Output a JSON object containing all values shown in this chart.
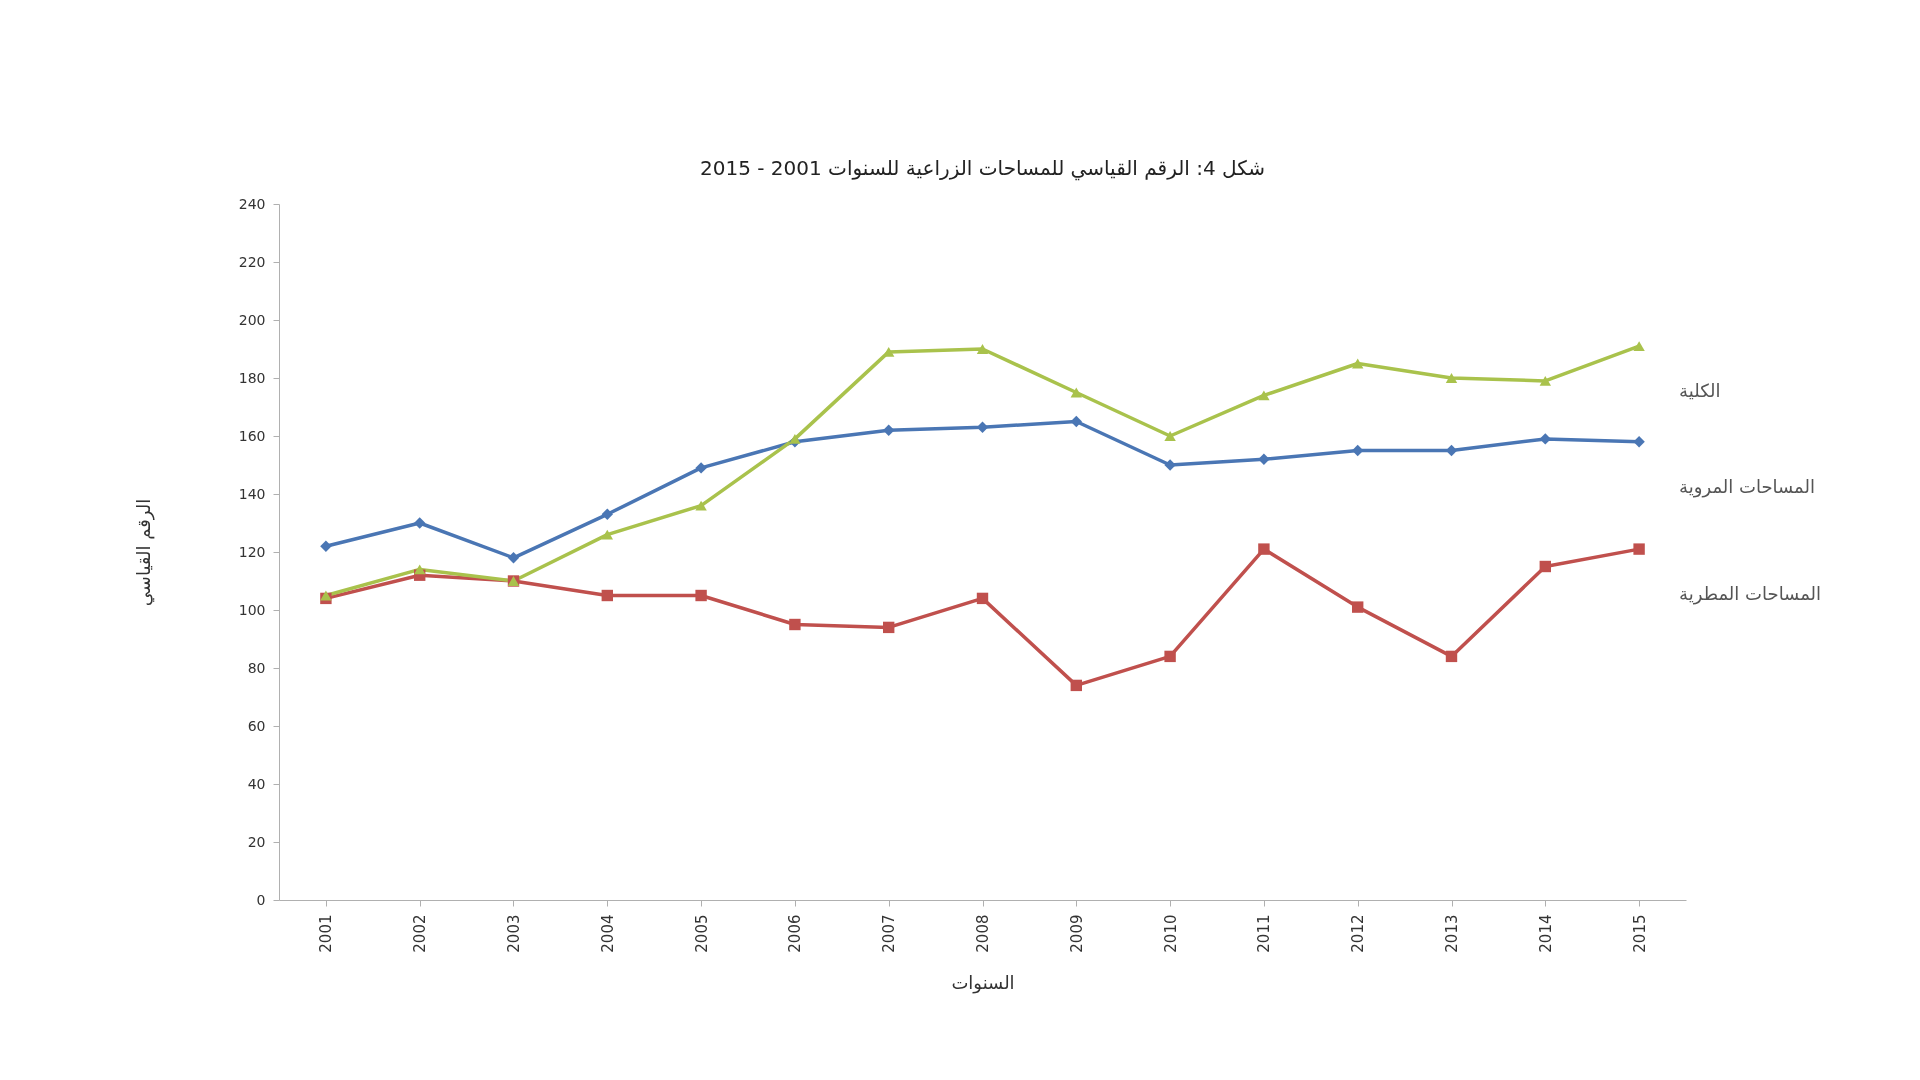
{
  "chart_data": {
    "type": "line",
    "title": "شكل 4: الرقم القياسي للمساحات الزراعية للسنوات 2001 - 2015",
    "xlabel": "السنوات",
    "ylabel": "الرقم القياسي",
    "categories": [
      "2001",
      "2002",
      "2003",
      "2004",
      "2005",
      "2006",
      "2007",
      "2008",
      "2009",
      "2010",
      "2011",
      "2012",
      "2013",
      "2014",
      "2015"
    ],
    "series": [
      {
        "name": "المساحات المروية",
        "color": "#4a76b4",
        "marker": "diamond",
        "values": [
          122,
          130,
          118,
          133,
          149,
          158,
          162,
          163,
          165,
          150,
          152,
          155,
          155,
          159,
          158
        ]
      },
      {
        "name": "المساحات المطرية",
        "color": "#c0504d",
        "marker": "square",
        "values": [
          104,
          112,
          110,
          105,
          105,
          95,
          94,
          104,
          74,
          84,
          121,
          101,
          84,
          115,
          121
        ]
      },
      {
        "name": "الكلية",
        "color": "#a9c24c",
        "marker": "triangle",
        "values": [
          105,
          114,
          110,
          126,
          136,
          159,
          189,
          190,
          175,
          160,
          174,
          185,
          180,
          179,
          191
        ]
      }
    ],
    "ylim": [
      0,
      240
    ],
    "yticks": [
      0,
      20,
      40,
      60,
      80,
      100,
      120,
      140,
      160,
      180,
      200,
      220,
      240
    ],
    "grid": false
  }
}
